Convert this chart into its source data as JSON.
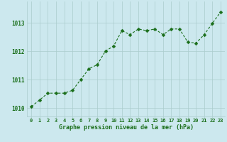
{
  "x": [
    0,
    1,
    2,
    3,
    4,
    5,
    6,
    7,
    8,
    9,
    10,
    11,
    12,
    13,
    14,
    15,
    16,
    17,
    18,
    19,
    20,
    21,
    22,
    23
  ],
  "y": [
    1010.05,
    1010.28,
    1010.52,
    1010.52,
    1010.52,
    1010.62,
    1011.0,
    1011.38,
    1011.52,
    1012.0,
    1012.18,
    1012.72,
    1012.58,
    1012.78,
    1012.72,
    1012.78,
    1012.58,
    1012.78,
    1012.78,
    1012.32,
    1012.28,
    1012.58,
    1012.98,
    1013.38
  ],
  "line_color": "#1a6e1a",
  "marker_color": "#1a6e1a",
  "bg_color": "#cce8ee",
  "grid_color": "#aacccc",
  "xlabel": "Graphe pression niveau de la mer (hPa)",
  "xlabel_color": "#1a6e1a",
  "tick_color": "#1a6e1a",
  "ylim": [
    1009.7,
    1013.75
  ],
  "yticks": [
    1010,
    1011,
    1012,
    1013
  ],
  "xlim": [
    -0.5,
    23.5
  ],
  "xticks": [
    0,
    1,
    2,
    3,
    4,
    5,
    6,
    7,
    8,
    9,
    10,
    11,
    12,
    13,
    14,
    15,
    16,
    17,
    18,
    19,
    20,
    21,
    22,
    23
  ]
}
